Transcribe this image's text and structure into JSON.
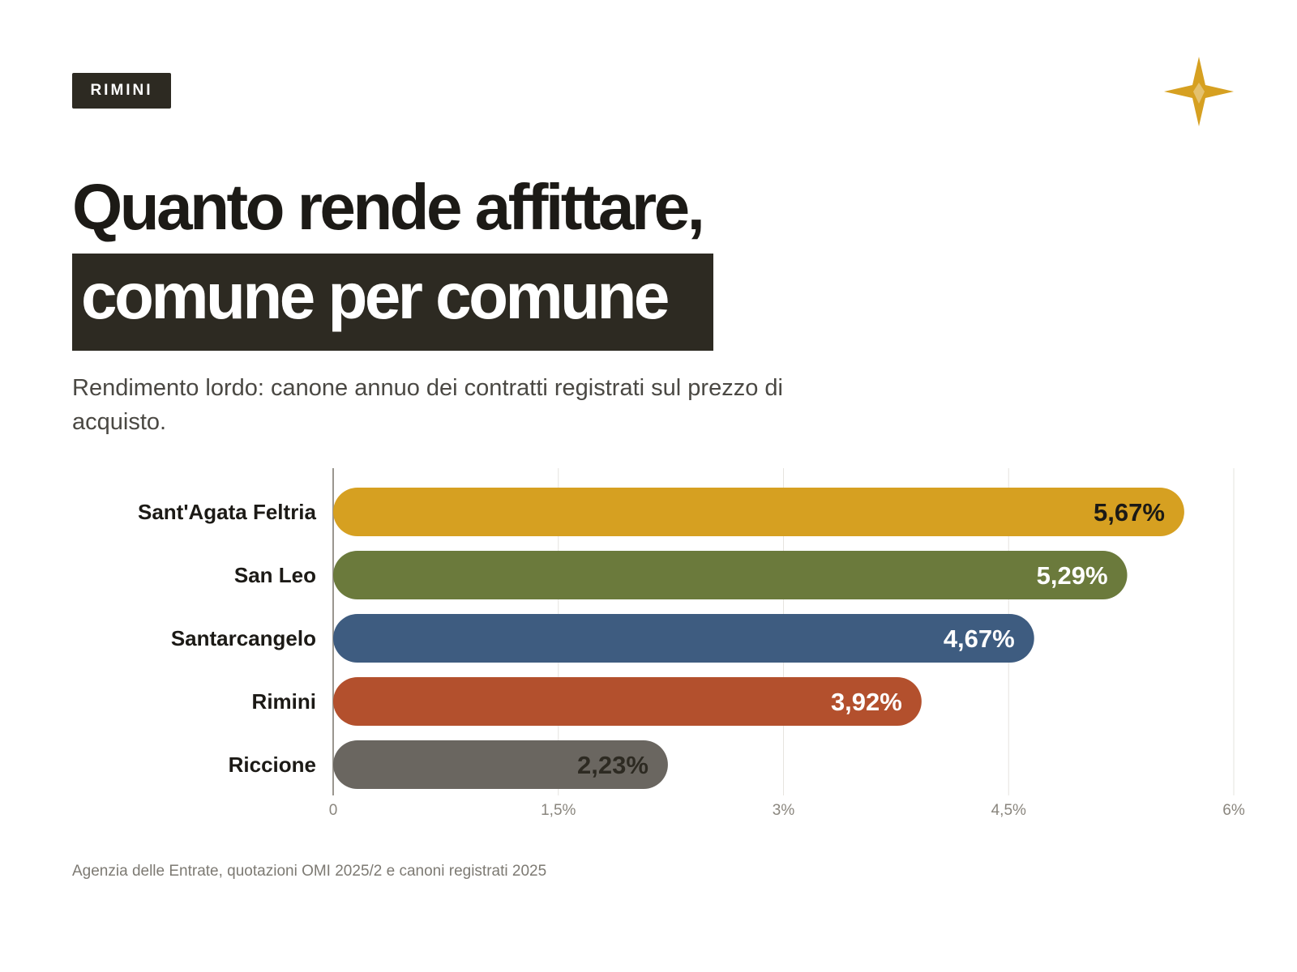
{
  "tag": "RIMINI",
  "title_line1": "Quanto rende affittare,",
  "title_line2": "comune per comune",
  "subtitle": "Rendimento lordo: canone annuo dei contratti registrati sul prezzo di acquisto.",
  "logo_icon": "star-compass-icon",
  "accent_color": "#d6a021",
  "chart_data": {
    "type": "bar",
    "orientation": "horizontal",
    "categories": [
      "Sant'Agata Feltria",
      "San Leo",
      "Santarcangelo",
      "Rimini",
      "Riccione"
    ],
    "values": [
      5.67,
      5.29,
      4.67,
      3.92,
      2.23
    ],
    "value_labels": [
      "5,67%",
      "5,29%",
      "4,67%",
      "3,92%",
      "2,23%"
    ],
    "colors": [
      "#d6a021",
      "#6b7a3c",
      "#3e5c80",
      "#b3502d",
      "#6a6660"
    ],
    "label_colors": [
      "#1c1a16",
      "#ffffff",
      "#ffffff",
      "#ffffff",
      "#2d2a22"
    ],
    "xlim": [
      0,
      6
    ],
    "xticks": [
      0,
      1.5,
      3,
      4.5,
      6
    ],
    "xtick_labels": [
      "0",
      "1,5%",
      "3%",
      "4,5%",
      "6%"
    ],
    "grid": true,
    "title": "",
    "xlabel": "",
    "ylabel": ""
  },
  "source": "Agenzia delle Entrate, quotazioni OMI 2025/2 e canoni registrati 2025"
}
